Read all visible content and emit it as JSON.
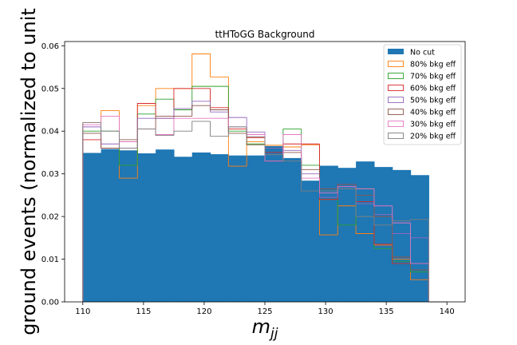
{
  "chart_data": {
    "type": "bar",
    "title": "ttHToGG Background",
    "xlabel": "m",
    "xlabel_sub": "jj",
    "ylabel": "ground events (normalized to unit",
    "xlim": [
      108.5,
      141.5
    ],
    "ylim": [
      0,
      0.061
    ],
    "xticks": [
      "110",
      "115",
      "120",
      "125",
      "130",
      "135",
      "140"
    ],
    "yticks": [
      "0.00",
      "0.01",
      "0.02",
      "0.03",
      "0.04",
      "0.05",
      "0.06"
    ],
    "bin_edges": [
      110,
      111.5,
      113,
      114.5,
      116,
      117.5,
      119,
      120.5,
      122,
      123.5,
      125,
      126.5,
      128,
      129.5,
      131,
      132.5,
      134,
      135.5,
      137,
      138.5,
      140
    ],
    "legend_position": "upper right",
    "series": [
      {
        "name": "No cut",
        "style": "filled",
        "color": "#1f77b4",
        "values": [
          0.0349,
          0.0358,
          0.0355,
          0.0348,
          0.0357,
          0.034,
          0.035,
          0.0346,
          0.0343,
          0.0343,
          0.0365,
          0.0337,
          0.0284,
          0.0319,
          0.0314,
          0.0329,
          0.0316,
          0.0309,
          0.0297,
          0.0
        ]
      },
      {
        "name": "80% bkg eff",
        "style": "step",
        "color": "#ff7f0e",
        "values": [
          0.042,
          0.0448,
          0.029,
          0.046,
          0.05,
          0.05,
          0.0581,
          0.0527,
          0.0318,
          0.0375,
          0.0367,
          0.0363,
          0.0368,
          0.0157,
          0.0225,
          0.016,
          0.0133,
          0.01,
          0.0052,
          0.0
        ]
      },
      {
        "name": "70% bkg eff",
        "style": "step",
        "color": "#2ca02c",
        "values": [
          0.04,
          0.04,
          0.032,
          0.044,
          0.0475,
          0.045,
          0.0505,
          0.0505,
          0.04,
          0.037,
          0.036,
          0.0405,
          0.032,
          0.024,
          0.018,
          0.0265,
          0.0125,
          0.0095,
          0.007,
          0.0
        ]
      },
      {
        "name": "60% bkg eff",
        "style": "step",
        "color": "#d62728",
        "values": [
          0.038,
          0.036,
          0.0375,
          0.0465,
          0.043,
          0.05,
          0.05,
          0.0455,
          0.0405,
          0.0385,
          0.035,
          0.037,
          0.037,
          0.024,
          0.0275,
          0.0235,
          0.0135,
          0.009,
          0.009,
          0.0
        ]
      },
      {
        "name": "50% bkg eff",
        "style": "step",
        "color": "#9467bd",
        "values": [
          0.041,
          0.037,
          0.036,
          0.043,
          0.043,
          0.0453,
          0.047,
          0.0445,
          0.0432,
          0.0398,
          0.036,
          0.0355,
          0.03,
          0.0245,
          0.027,
          0.023,
          0.0205,
          0.016,
          0.015,
          0.0
        ]
      },
      {
        "name": "40% bkg eff",
        "style": "step",
        "color": "#8c564b",
        "values": [
          0.0395,
          0.036,
          0.038,
          0.0405,
          0.0435,
          0.0435,
          0.046,
          0.045,
          0.0395,
          0.0368,
          0.033,
          0.035,
          0.031,
          0.0265,
          0.0275,
          0.025,
          0.02,
          0.0105,
          0.0075,
          0.0
        ]
      },
      {
        "name": "30% bkg eff",
        "style": "step",
        "color": "#e377c2",
        "values": [
          0.0415,
          0.0435,
          0.0375,
          0.0405,
          0.0392,
          0.043,
          0.043,
          0.043,
          0.041,
          0.0392,
          0.033,
          0.0392,
          0.029,
          0.0255,
          0.027,
          0.0265,
          0.0225,
          0.0185,
          0.009,
          0.0
        ]
      },
      {
        "name": "20% bkg eff",
        "style": "step",
        "color": "#7f7f7f",
        "values": [
          0.042,
          0.04,
          0.036,
          0.0405,
          0.039,
          0.04,
          0.0423,
          0.0388,
          0.041,
          0.0387,
          0.0345,
          0.033,
          0.026,
          0.026,
          0.0265,
          0.02,
          0.018,
          0.019,
          0.0193,
          0.0
        ]
      }
    ]
  }
}
